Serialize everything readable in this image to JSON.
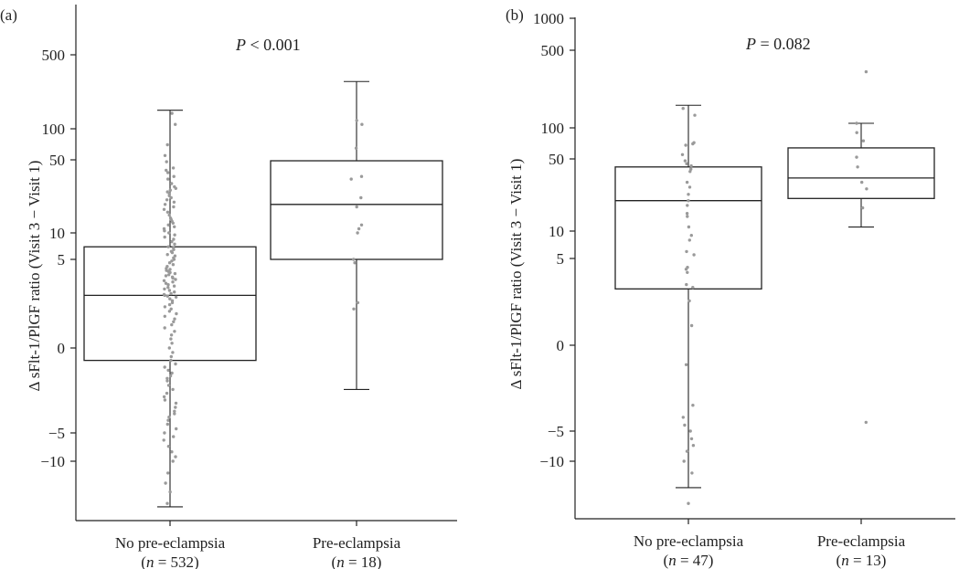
{
  "chart_data": [
    {
      "type": "box",
      "panel_label": "(a)",
      "annotation": {
        "prefix": "P",
        "rest": " < 0.001"
      },
      "ylabel": "Δ sFlt-1/PlGF ratio (Visit 3 − Visit 1)",
      "y_scale": "pseudo-log (signed)",
      "yticks": [
        -10,
        -5,
        0,
        5,
        10,
        50,
        100,
        500
      ],
      "ytick_labels": [
        "−10",
        "−5",
        "0",
        "5",
        "10",
        "50",
        "100",
        "500"
      ],
      "ylim": [
        -22,
        1000
      ],
      "categories": [
        {
          "name": "No pre-eclampsia",
          "n_label": "n",
          "n_text": " = 532)"
        },
        {
          "name": "Pre-eclampsia",
          "n_label": "n",
          "n_text": " = 18)"
        }
      ],
      "boxes": [
        {
          "whisker_low": -20,
          "q1": -0.3,
          "median": 1.9,
          "q3": 7,
          "whisker_high": 150
        },
        {
          "whisker_low": -1.4,
          "q1": 5,
          "median": 19,
          "q3": 49,
          "whisker_high": 280
        }
      ],
      "points": [
        [
          140,
          110,
          70,
          55,
          48,
          42,
          40,
          38,
          35,
          33,
          30,
          28,
          27,
          26,
          25,
          24,
          23,
          22,
          21,
          20,
          19,
          18,
          17,
          16,
          15,
          14,
          13.5,
          13,
          12.5,
          12,
          11.5,
          11,
          10.5,
          10,
          9.5,
          9,
          8.5,
          8,
          7.5,
          7,
          6.8,
          6.5,
          6.2,
          6,
          5.7,
          5.5,
          5.2,
          5,
          4.8,
          4.6,
          4.4,
          4.2,
          4,
          3.9,
          3.8,
          3.7,
          3.6,
          3.5,
          3.4,
          3.3,
          3.2,
          3.1,
          3,
          2.9,
          2.8,
          2.7,
          2.6,
          2.5,
          2.4,
          2.3,
          2.2,
          2.1,
          2,
          1.95,
          1.9,
          1.85,
          1.8,
          1.7,
          1.6,
          1.5,
          1.4,
          1.3,
          1.2,
          1.1,
          1,
          0.9,
          0.8,
          0.7,
          0.6,
          0.5,
          0.4,
          0.3,
          0.2,
          0.1,
          0,
          -0.1,
          -0.2,
          -0.3,
          -0.4,
          -0.5,
          -0.6,
          -0.7,
          -0.8,
          -0.9,
          -1,
          -1.2,
          -1.4,
          -1.6,
          -1.8,
          -2,
          -2.2,
          -2.5,
          -2.8,
          -3,
          -3.3,
          -3.6,
          -4,
          -4.5,
          -5,
          -5.5,
          -6,
          -7,
          -8,
          -9,
          -10,
          -12,
          -14,
          -16,
          -19
        ],
        [
          120,
          110,
          65,
          35,
          33,
          22,
          18,
          12,
          11,
          10,
          5,
          4.6,
          1.5,
          1.2
        ]
      ]
    },
    {
      "type": "box",
      "panel_label": "(b)",
      "annotation": {
        "prefix": "P",
        "rest": " = 0.082"
      },
      "ylabel": "Δ sFlt-1/PlGF ratio (Visit 3 − Visit 1)",
      "y_scale": "pseudo-log (signed)",
      "yticks": [
        -10,
        -5,
        0,
        5,
        10,
        50,
        100,
        500,
        1000
      ],
      "ytick_labels": [
        "−10",
        "−5",
        "0",
        "5",
        "10",
        "50",
        "100",
        "500",
        "1000"
      ],
      "ylim": [
        -22,
        1000
      ],
      "categories": [
        {
          "name": "No pre-eclampsia",
          "n_label": "n",
          "n_text": " = 47)"
        },
        {
          "name": "Pre-eclampsia",
          "n_label": "n",
          "n_text": " = 13)"
        }
      ],
      "boxes": [
        {
          "whisker_low": -15,
          "q1": 2.2,
          "median": 20,
          "q3": 42,
          "whisker_high": 160
        },
        {
          "whisker_low": 11,
          "q1": 21,
          "median": 33,
          "q3": 64,
          "whisker_high": 110
        }
      ],
      "points": [
        [
          150,
          130,
          72,
          70,
          68,
          55,
          48,
          45,
          43,
          40,
          38,
          30,
          27,
          23,
          20,
          18,
          15,
          14,
          11,
          9,
          8,
          6,
          5.5,
          4,
          3.8,
          3.5,
          2.5,
          2.3,
          1.5,
          0.5,
          -0.5,
          -2.5,
          -3.5,
          -4.3,
          -5,
          -6,
          -7,
          -8,
          -10,
          -12,
          -19
        ],
        [
          320,
          110,
          90,
          75,
          52,
          42,
          30,
          26,
          17,
          -4
        ]
      ]
    }
  ]
}
